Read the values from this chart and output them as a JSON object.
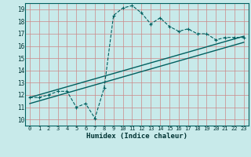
{
  "title": "",
  "xlabel": "Humidex (Indice chaleur)",
  "xlim": [
    -0.5,
    23.5
  ],
  "ylim": [
    9.5,
    19.5
  ],
  "xticks": [
    0,
    1,
    2,
    3,
    4,
    5,
    6,
    7,
    8,
    9,
    10,
    11,
    12,
    13,
    14,
    15,
    16,
    17,
    18,
    19,
    20,
    21,
    22,
    23
  ],
  "yticks": [
    10,
    11,
    12,
    13,
    14,
    15,
    16,
    17,
    18,
    19
  ],
  "bg_color": "#c8eaea",
  "grid_color": "#cc8888",
  "line_color": "#006060",
  "curve1_x": [
    0,
    1,
    2,
    3,
    4,
    5,
    6,
    7,
    8,
    9,
    10,
    11,
    12,
    13,
    14,
    15,
    16,
    17,
    18,
    19,
    20,
    21,
    22,
    23
  ],
  "curve1_y": [
    11.8,
    11.8,
    12.0,
    12.3,
    12.3,
    11.0,
    11.3,
    10.1,
    12.6,
    18.5,
    19.1,
    19.3,
    18.7,
    17.8,
    18.3,
    17.6,
    17.2,
    17.4,
    17.0,
    17.0,
    16.5,
    16.7,
    16.7,
    16.7
  ],
  "curve2_x": [
    0,
    23
  ],
  "curve2_y": [
    11.8,
    16.8
  ],
  "curve3_x": [
    0,
    23
  ],
  "curve3_y": [
    11.3,
    16.3
  ]
}
